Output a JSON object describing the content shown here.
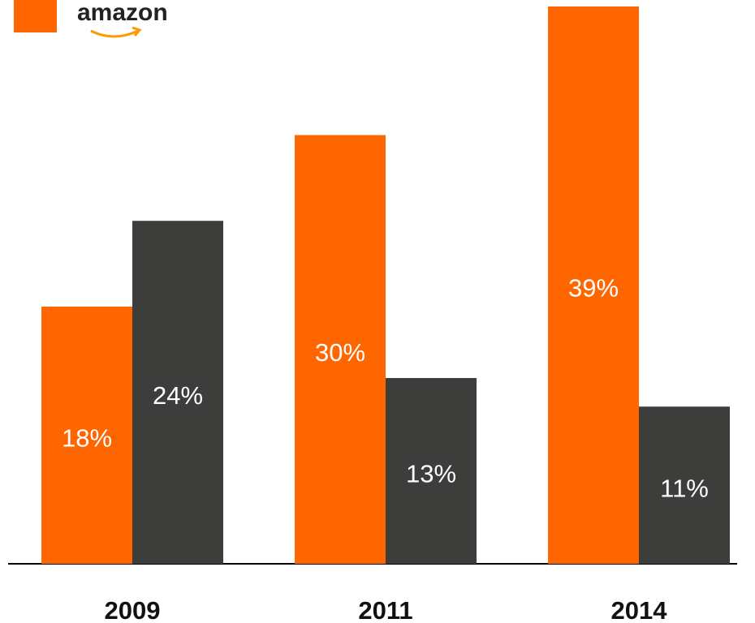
{
  "chart_data": {
    "type": "bar",
    "categories": [
      "2009",
      "2011",
      "2014"
    ],
    "series": [
      {
        "name": "amazon",
        "color": "#ff6600",
        "values": [
          18,
          30,
          39
        ],
        "value_labels": [
          "18%",
          "30%",
          "39%"
        ]
      },
      {
        "color": "#3d3d3b",
        "values": [
          24,
          13,
          11
        ],
        "value_labels": [
          "24%",
          "13%",
          "11%"
        ]
      }
    ]
  }
}
